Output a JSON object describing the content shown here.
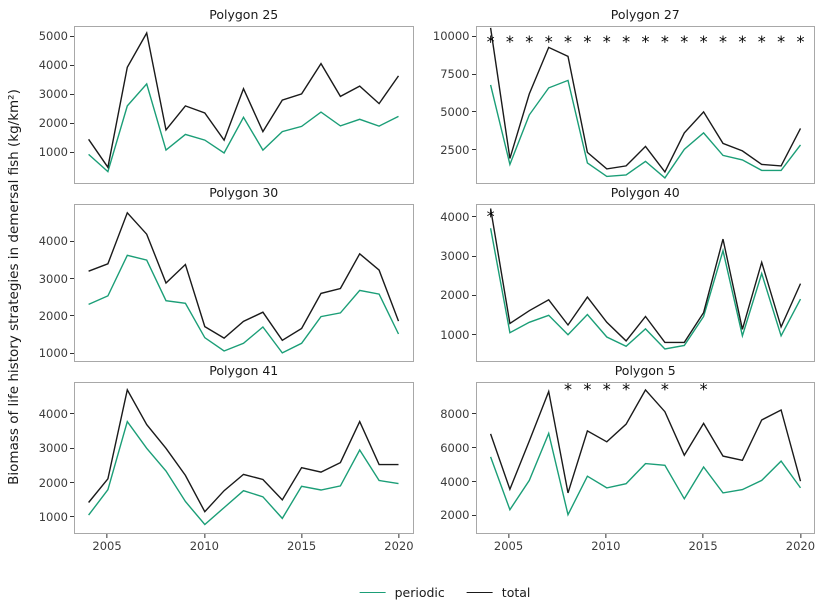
{
  "y_axis": {
    "label": "Biomass of life history strategies in demersal fish (kg/km²)"
  },
  "legend": {
    "items": [
      {
        "label": "periodic",
        "color": "#1b9e77"
      },
      {
        "label": "total",
        "color": "#1a1a1a"
      }
    ]
  },
  "chart_data": {
    "type": "line",
    "x": [
      2004,
      2005,
      2006,
      2007,
      2008,
      2009,
      2010,
      2011,
      2012,
      2013,
      2014,
      2015,
      2016,
      2017,
      2018,
      2019,
      2020
    ],
    "x_ticks": [
      2005,
      2010,
      2015,
      2020
    ],
    "x_range": [
      2003.3,
      2020.75
    ],
    "legend_position": "bottom",
    "grid": "off",
    "panels": [
      {
        "title": "Polygon 25",
        "y_ticks": [
          1000,
          2000,
          3000,
          4000,
          5000
        ],
        "y_range": [
          -100,
          5360
        ],
        "asterisk_years": [],
        "asterisk_y": null,
        "series": [
          {
            "name": "periodic",
            "color": "#1b9e77",
            "values": [
              900,
              300,
              2600,
              3370,
              1050,
              1600,
              1400,
              950,
              2200,
              1050,
              1700,
              1880,
              2380,
              1900,
              2130,
              1890,
              2230
            ]
          },
          {
            "name": "total",
            "color": "#1a1a1a",
            "values": [
              1430,
              450,
              3950,
              5150,
              1760,
              2600,
              2350,
              1400,
              3200,
              1700,
              2800,
              3020,
              4080,
              2930,
              3290,
              2680,
              3650
            ]
          }
        ]
      },
      {
        "title": "Polygon 27",
        "y_ticks": [
          2500,
          5000,
          7500,
          10000
        ],
        "y_range": [
          260,
          10660
        ],
        "asterisk_years": [
          2004,
          2005,
          2006,
          2007,
          2008,
          2009,
          2010,
          2011,
          2012,
          2013,
          2014,
          2015,
          2016,
          2017,
          2018,
          2019,
          2020
        ],
        "asterisk_y": 9700,
        "series": [
          {
            "name": "periodic",
            "color": "#1b9e77",
            "values": [
              6800,
              1500,
              4800,
              6600,
              7100,
              1600,
              700,
              800,
              1700,
              600,
              2500,
              3600,
              2100,
              1800,
              1100,
              1100,
              2800
            ]
          },
          {
            "name": "total",
            "color": "#1a1a1a",
            "values": [
              10600,
              1900,
              6200,
              9300,
              8700,
              2300,
              1200,
              1400,
              2700,
              1000,
              3600,
              5000,
              2900,
              2400,
              1500,
              1400,
              3900
            ]
          }
        ]
      },
      {
        "title": "Polygon 30",
        "y_ticks": [
          1000,
          2000,
          3000,
          4000
        ],
        "y_range": [
          770,
          4990
        ],
        "asterisk_years": [],
        "asterisk_y": null,
        "series": [
          {
            "name": "periodic",
            "color": "#1b9e77",
            "values": [
              2300,
              2530,
              3630,
              3500,
              2400,
              2330,
              1400,
              1040,
              1250,
              1690,
              990,
              1250,
              1970,
              2070,
              2680,
              2580,
              1500
            ]
          },
          {
            "name": "total",
            "color": "#1a1a1a",
            "values": [
              3200,
              3400,
              4780,
              4200,
              2880,
              3380,
              1700,
              1390,
              1840,
              2090,
              1330,
              1650,
              2600,
              2730,
              3670,
              3230,
              1850
            ]
          }
        ]
      },
      {
        "title": "Polygon 40",
        "y_ticks": [
          1000,
          2000,
          3000,
          4000
        ],
        "y_range": [
          300,
          4330
        ],
        "asterisk_years": [
          2004
        ],
        "asterisk_y": 4050,
        "series": [
          {
            "name": "periodic",
            "color": "#1b9e77",
            "values": [
              3730,
              1030,
              1300,
              1480,
              980,
              1500,
              920,
              680,
              1130,
              610,
              700,
              1450,
              3150,
              950,
              2560,
              950,
              1900
            ]
          },
          {
            "name": "total",
            "color": "#1a1a1a",
            "values": [
              4240,
              1270,
              1600,
              1880,
              1230,
              1950,
              1300,
              820,
              1450,
              780,
              780,
              1550,
              3450,
              1120,
              2850,
              1180,
              2300
            ]
          }
        ]
      },
      {
        "title": "Polygon 41",
        "y_ticks": [
          1000,
          2000,
          3000,
          4000
        ],
        "y_range": [
          500,
          4930
        ],
        "asterisk_years": [],
        "asterisk_y": null,
        "series": [
          {
            "name": "periodic",
            "color": "#1b9e77",
            "values": [
              1030,
              1780,
              3790,
              3000,
              2330,
              1430,
              750,
              1250,
              1750,
              1570,
              930,
              1880,
              1770,
              1890,
              2950,
              2050,
              1960
            ]
          },
          {
            "name": "total",
            "color": "#1a1a1a",
            "values": [
              1400,
              2100,
              4730,
              3700,
              3000,
              2200,
              1130,
              1750,
              2230,
              2080,
              1480,
              2430,
              2300,
              2580,
              3790,
              2520,
              2520
            ]
          }
        ]
      },
      {
        "title": "Polygon 5",
        "y_ticks": [
          2000,
          4000,
          6000,
          8000
        ],
        "y_range": [
          910,
          9860
        ],
        "asterisk_years": [
          2008,
          2009,
          2010,
          2011,
          2013,
          2015
        ],
        "asterisk_y": 9500,
        "series": [
          {
            "name": "periodic",
            "color": "#1b9e77",
            "values": [
              5450,
              2300,
              4050,
              6850,
              2000,
              4300,
              3600,
              3850,
              5050,
              4950,
              2950,
              4850,
              3300,
              3500,
              4050,
              5200,
              3600
            ]
          },
          {
            "name": "total",
            "color": "#1a1a1a",
            "values": [
              6820,
              3520,
              6400,
              9350,
              3300,
              7000,
              6350,
              7400,
              9450,
              8150,
              5550,
              7450,
              5500,
              5250,
              7650,
              8250,
              4000
            ]
          }
        ]
      }
    ]
  }
}
